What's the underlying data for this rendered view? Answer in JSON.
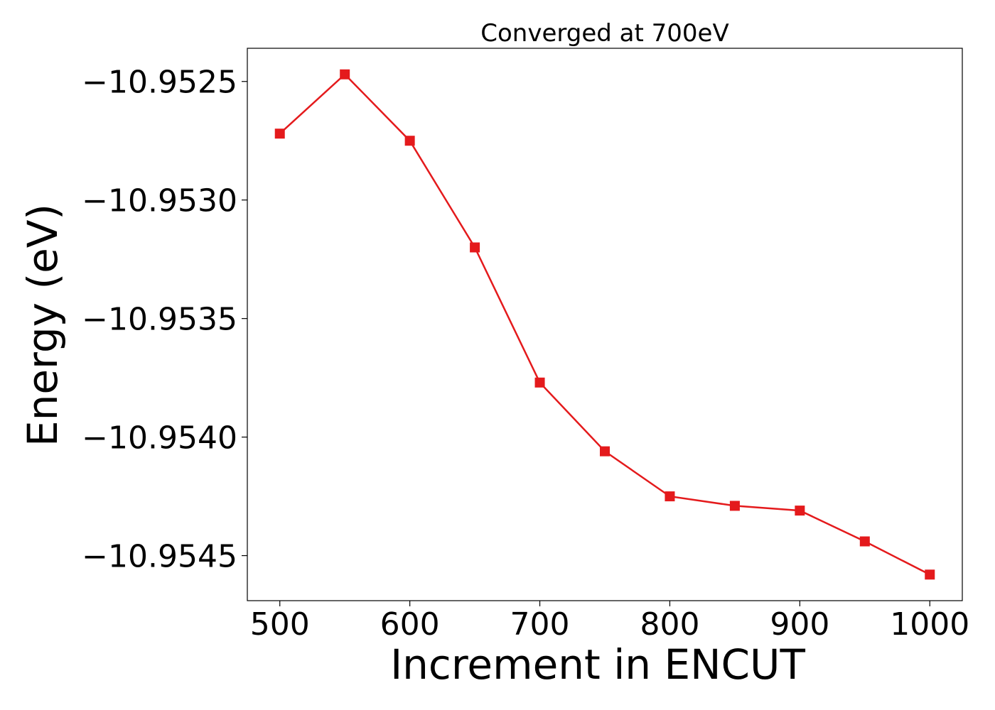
{
  "chart_data": {
    "type": "line",
    "title": "Converged at 700eV",
    "xlabel": "Increment in ENCUT",
    "ylabel": "Energy (eV)",
    "xlim": [
      475,
      1025
    ],
    "ylim": [
      -10.95469,
      -10.95236
    ],
    "x_ticks": [
      500,
      600,
      700,
      800,
      900,
      1000
    ],
    "x_tick_labels": [
      "500",
      "600",
      "700",
      "800",
      "900",
      "1000"
    ],
    "y_ticks": [
      -10.9525,
      -10.953,
      -10.9535,
      -10.954,
      -10.9545
    ],
    "y_tick_labels": [
      "−10.9525",
      "−10.9530",
      "−10.9535",
      "−10.9540",
      "−10.9545"
    ],
    "grid": false,
    "legend": "none",
    "series": [
      {
        "color": "#e41a1c",
        "marker": "square",
        "x": [
          500,
          550,
          600,
          650,
          700,
          750,
          800,
          850,
          900,
          950,
          1000
        ],
        "y": [
          -10.95272,
          -10.95247,
          -10.95275,
          -10.9532,
          -10.95377,
          -10.95406,
          -10.95425,
          -10.95429,
          -10.95431,
          -10.95444,
          -10.95458
        ]
      }
    ]
  }
}
